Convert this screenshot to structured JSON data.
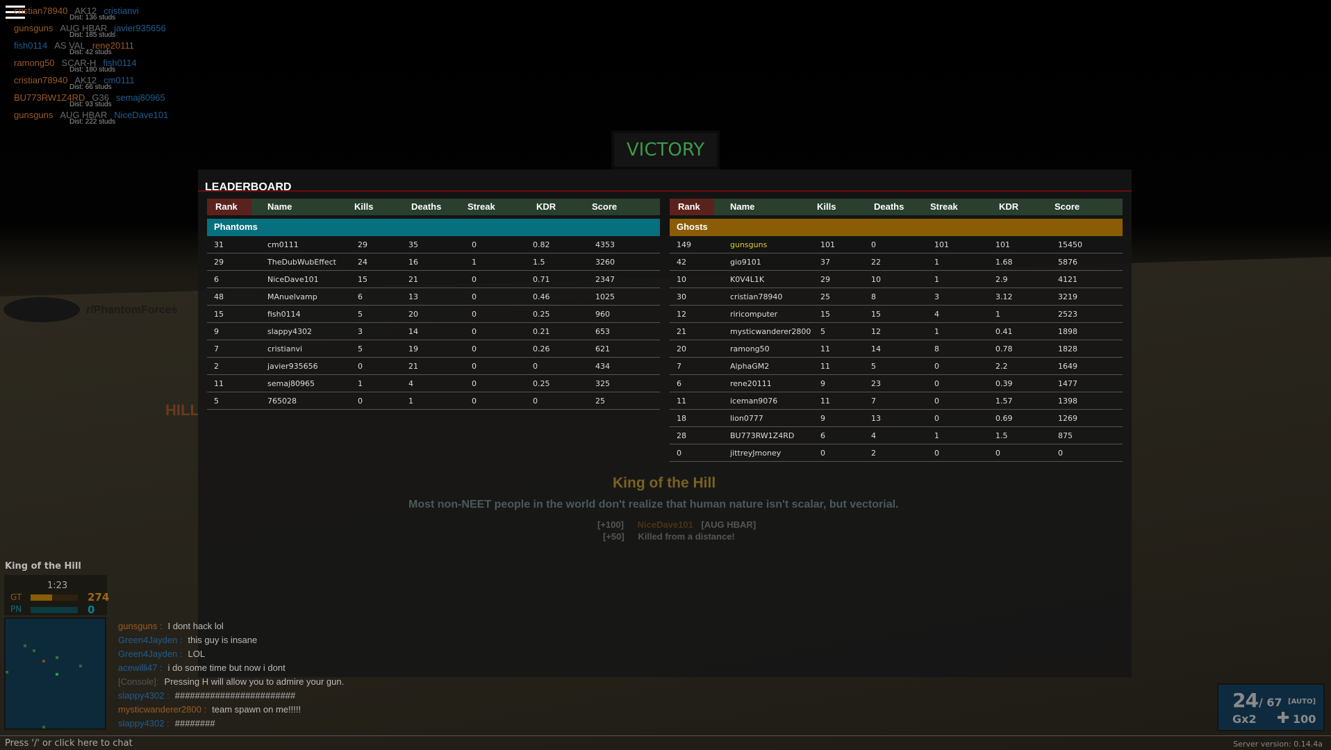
{
  "killfeed": [
    {
      "killer": "cristian78940",
      "weapon": "AK12",
      "victim": "cristianvi",
      "dist": "Dist: 136 studs"
    },
    {
      "killer": "gunsguns",
      "weapon": "AUG HBAR",
      "victim": "javier935656",
      "dist": "Dist: 185 studs"
    },
    {
      "killer": "fish0114",
      "weapon": "AS VAL",
      "victim": "rene20111",
      "dist": "Dist: 42 studs",
      "killer_team": "phantoms"
    },
    {
      "killer": "ramong50",
      "weapon": "SCAR-H",
      "victim": "fish0114",
      "dist": "Dist: 180 studs"
    },
    {
      "killer": "cristian78940",
      "weapon": "AK12",
      "victim": "cm0111",
      "dist": "Dist: 66 studs"
    },
    {
      "killer": "BU773RW1Z4RD",
      "weapon": "G36",
      "victim": "semaj80965",
      "dist": "Dist: 93 studs"
    },
    {
      "killer": "gunsguns",
      "weapon": "AUG HBAR",
      "victim": "NiceDave101",
      "dist": "Dist: 222 studs"
    }
  ],
  "victory": "VICTORY",
  "world": {
    "hill_sign": "King of the Hill",
    "hill_left": "HILL",
    "reddit": "r/PhantomForces",
    "quote": "Most non-NEET people in the world don't realize that human nature isn't scalar, but vectorial."
  },
  "leaderboard": {
    "title": "LEADERBOARD",
    "columns": [
      "Rank",
      "Name",
      "Kills",
      "Deaths",
      "Streak",
      "KDR",
      "Score"
    ],
    "teams": [
      {
        "name": "Phantoms",
        "color": "#07707f",
        "rows": [
          [
            "31",
            "cm0111",
            "29",
            "35",
            "0",
            "0.82",
            "4353"
          ],
          [
            "29",
            "TheDubWubEffect",
            "24",
            "16",
            "1",
            "1.5",
            "3260"
          ],
          [
            "6",
            "NiceDave101",
            "15",
            "21",
            "0",
            "0.71",
            "2347"
          ],
          [
            "48",
            "MAnuelvamp",
            "6",
            "13",
            "0",
            "0.46",
            "1025"
          ],
          [
            "15",
            "fish0114",
            "5",
            "20",
            "0",
            "0.25",
            "960"
          ],
          [
            "9",
            "slappy4302",
            "3",
            "14",
            "0",
            "0.21",
            "653"
          ],
          [
            "7",
            "cristianvi",
            "5",
            "19",
            "0",
            "0.26",
            "621"
          ],
          [
            "2",
            "javier935656",
            "0",
            "21",
            "0",
            "0",
            "434"
          ],
          [
            "11",
            "semaj80965",
            "1",
            "4",
            "0",
            "0.25",
            "325"
          ],
          [
            "5",
            "765028",
            "0",
            "1",
            "0",
            "0",
            "25"
          ]
        ]
      },
      {
        "name": "Ghosts",
        "color": "#8a5c05",
        "highlight": "gunsguns",
        "rows": [
          [
            "149",
            "gunsguns",
            "101",
            "0",
            "101",
            "101",
            "15450"
          ],
          [
            "42",
            "gio9101",
            "37",
            "22",
            "1",
            "1.68",
            "5876"
          ],
          [
            "10",
            "K0V4L1K",
            "29",
            "10",
            "1",
            "2.9",
            "4121"
          ],
          [
            "30",
            "cristian78940",
            "25",
            "8",
            "3",
            "3.12",
            "3219"
          ],
          [
            "12",
            "riricomputer",
            "15",
            "15",
            "4",
            "1",
            "2523"
          ],
          [
            "21",
            "mysticwanderer2800",
            "5",
            "12",
            "1",
            "0.41",
            "1898"
          ],
          [
            "20",
            "ramong50",
            "11",
            "14",
            "8",
            "0.78",
            "1828"
          ],
          [
            "7",
            "AlphaGM2",
            "11",
            "5",
            "0",
            "2.2",
            "1649"
          ],
          [
            "6",
            "rene20111",
            "9",
            "23",
            "0",
            "0.39",
            "1477"
          ],
          [
            "11",
            "iceman9076",
            "11",
            "7",
            "0",
            "1.57",
            "1398"
          ],
          [
            "18",
            "lion0777",
            "9",
            "13",
            "0",
            "0.69",
            "1269"
          ],
          [
            "28",
            "BU773RW1Z4RD",
            "6",
            "4",
            "1",
            "1.5",
            "875"
          ],
          [
            "0",
            "jittreyJmoney",
            "0",
            "2",
            "0",
            "0",
            "0"
          ]
        ]
      }
    ]
  },
  "killnotice": {
    "points1": "[+100]",
    "victim": "NiceDave101",
    "weapon": "[AUG HBAR]",
    "points2": "[+50]",
    "bonus": "Killed from a distance!"
  },
  "mode": {
    "name": "King of the Hill",
    "timer": "1:23",
    "gt_label": "GT",
    "gt_score": "274",
    "gt_progress": 0.45,
    "pn_label": "PN",
    "pn_score": "0",
    "pn_progress": 0
  },
  "chat": [
    {
      "name": "gunsguns :",
      "msg": "I dont hack lol",
      "team": "o"
    },
    {
      "name": "Green4Jayden :",
      "msg": "this guy is insane",
      "team": "b"
    },
    {
      "name": "Green4Jayden :",
      "msg": "LOL",
      "team": "b"
    },
    {
      "name": "acewilli47 :",
      "msg": "i do some time but now i dont",
      "team": "b"
    },
    {
      "name": "[Console]:",
      "msg": "Pressing H will allow you to admire your gun.",
      "team": "g"
    },
    {
      "name": "slappy4302 :",
      "msg": "########################",
      "team": "b"
    },
    {
      "name": "mysticwanderer2800 :",
      "msg": "team spawn on me!!!!!",
      "team": "o"
    },
    {
      "name": "slappy4302 :",
      "msg": "########",
      "team": "b"
    }
  ],
  "chat_prompt": "Press '/' or click here to chat",
  "hud": {
    "mag": "24",
    "reserve": "/ 67",
    "firemode": "[AUTO]",
    "grenades": "Gx2",
    "health": "100"
  },
  "server_version": "Server version: 0.14.4a"
}
